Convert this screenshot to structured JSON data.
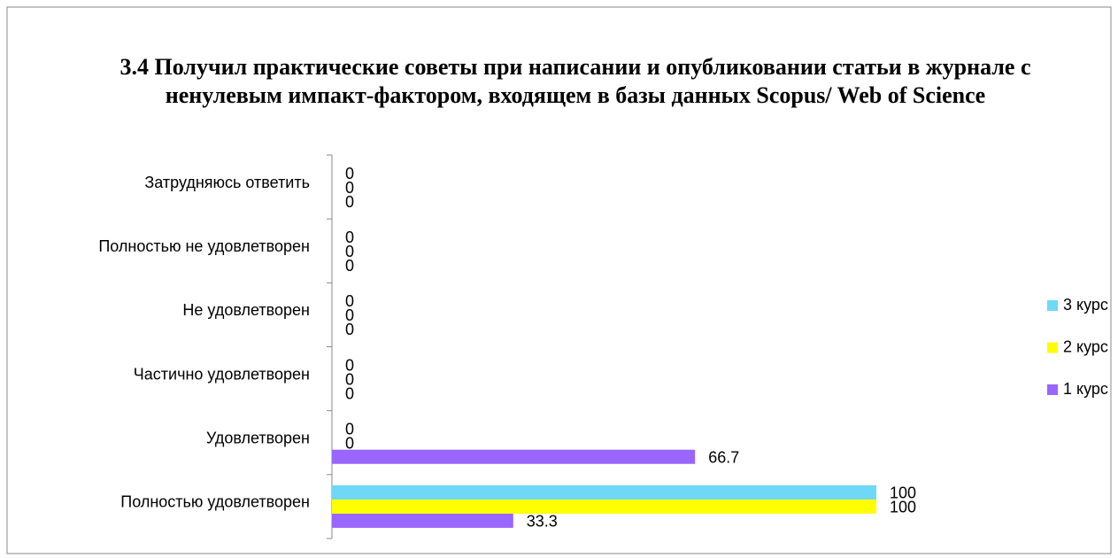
{
  "chart_data": {
    "type": "bar",
    "orientation": "horizontal",
    "title": "3.4 Получил практические советы при написании и опубликовании статьи в журнале с ненулевым импакт-фактором, входящем в базы данных Scopus/ Web of Science",
    "categories": [
      "Полностью удовлетворен",
      "Удовлетворен",
      "Частично удовлетворен",
      "Не удовлетворен",
      "Полностью не удовлетворен",
      "Затрудняюсь ответить"
    ],
    "series": [
      {
        "name": "1 курс",
        "color": "#9966ff",
        "values": [
          33.3,
          66.7,
          0,
          0,
          0,
          0
        ]
      },
      {
        "name": "2 курс",
        "color": "#ffff00",
        "values": [
          100,
          0,
          0,
          0,
          0,
          0
        ]
      },
      {
        "name": "3 курс",
        "color": "#6fd8f7",
        "values": [
          100,
          0,
          0,
          0,
          0,
          0
        ]
      }
    ],
    "legend": "right"
  }
}
